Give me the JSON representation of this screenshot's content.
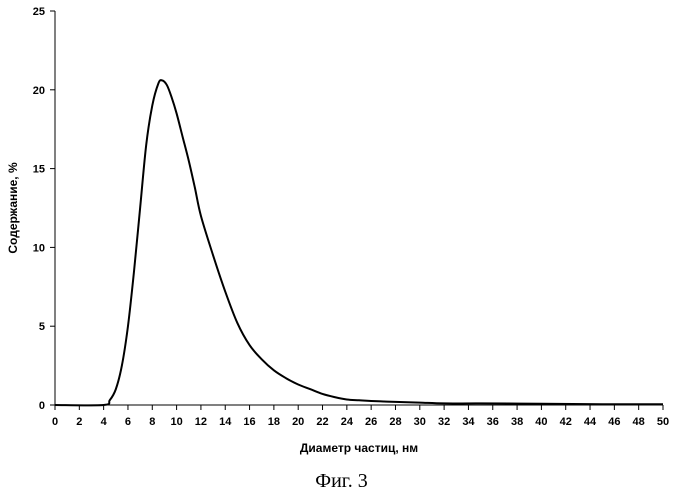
{
  "chart_data": {
    "type": "line",
    "title": "",
    "xlabel": "Диаметр частиц, нм",
    "ylabel": "Содержание, %",
    "xlim": [
      0,
      50
    ],
    "ylim": [
      0,
      25
    ],
    "x_ticks": [
      0,
      2,
      4,
      6,
      8,
      10,
      12,
      14,
      16,
      18,
      20,
      22,
      24,
      26,
      28,
      30,
      32,
      34,
      36,
      38,
      40,
      42,
      44,
      46,
      48,
      50
    ],
    "y_ticks": [
      0,
      5,
      10,
      15,
      20,
      25
    ],
    "grid": false,
    "legend": "none",
    "series": [
      {
        "x": [
          0,
          4,
          4.5,
          5,
          5.5,
          6,
          6.5,
          7,
          7.5,
          8,
          8.5,
          8.8,
          9.2,
          9.6,
          10,
          10.5,
          11,
          11.5,
          12,
          13,
          14,
          15,
          16,
          17,
          18,
          19,
          20,
          21,
          22,
          23,
          24,
          25,
          26,
          28,
          30,
          32,
          35,
          40,
          45,
          50
        ],
        "y": [
          0,
          0,
          0.3,
          1,
          2.5,
          5,
          8.5,
          12.5,
          16.5,
          19,
          20.4,
          20.6,
          20.3,
          19.5,
          18.5,
          17,
          15.5,
          13.8,
          12,
          9.5,
          7.2,
          5.2,
          3.8,
          2.9,
          2.2,
          1.7,
          1.3,
          1.0,
          0.7,
          0.5,
          0.35,
          0.3,
          0.25,
          0.2,
          0.15,
          0.1,
          0.1,
          0.08,
          0.05,
          0.05
        ],
        "color": "#000000"
      }
    ]
  },
  "caption": "Фиг. 3"
}
